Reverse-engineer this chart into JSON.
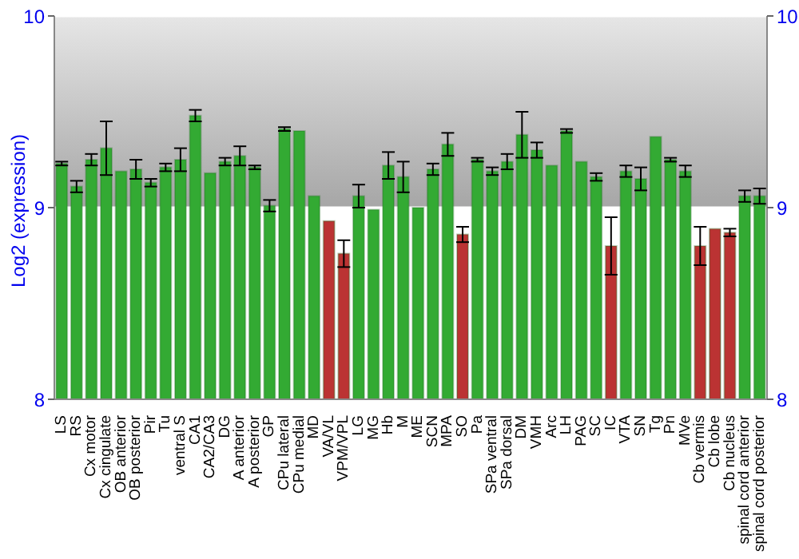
{
  "chart_data": {
    "type": "bar",
    "ylabel": "Log2 (expression)",
    "categories": [
      "LS",
      "RS",
      "Cx motor",
      "Cx cingulate",
      "OB anterior",
      "OB posterior",
      "Pir",
      "Tu",
      "ventral S",
      "CA1",
      "CA2/CA3",
      "DG",
      "A anterior",
      "A posterior",
      "GP",
      "CPu lateral",
      "CPu medial",
      "MD",
      "VA/VL",
      "VPM/VPL",
      "LG",
      "MG",
      "Hb",
      "M",
      "ME",
      "SCN",
      "MPA",
      "SO",
      "Pa",
      "SPa ventral",
      "SPa dorsal",
      "DM",
      "VMH",
      "Arc",
      "LH",
      "PAG",
      "SC",
      "IC",
      "VTA",
      "SN",
      "Tg",
      "Pn",
      "MVe",
      "Cb vermis",
      "Cb lobe",
      "Cb nucleus",
      "spinal cord anterior",
      "spinal cord posterior"
    ],
    "values": [
      9.23,
      9.11,
      9.25,
      9.31,
      9.19,
      9.2,
      9.13,
      9.21,
      9.25,
      9.48,
      9.18,
      9.24,
      9.27,
      9.21,
      9.01,
      9.41,
      9.4,
      9.06,
      8.93,
      8.76,
      9.06,
      8.99,
      9.22,
      9.16,
      9.0,
      9.2,
      9.33,
      8.86,
      9.25,
      9.19,
      9.24,
      9.38,
      9.3,
      9.22,
      9.4,
      9.24,
      9.16,
      8.8,
      9.19,
      9.15,
      9.37,
      9.25,
      9.19,
      8.8,
      8.89,
      8.87,
      9.06,
      9.06
    ],
    "errors": [
      0.01,
      0.03,
      0.03,
      0.14,
      null,
      0.05,
      0.02,
      0.02,
      0.06,
      0.03,
      null,
      0.02,
      0.05,
      0.01,
      0.03,
      0.01,
      null,
      null,
      null,
      0.07,
      0.06,
      null,
      0.07,
      0.08,
      null,
      0.03,
      0.06,
      0.04,
      0.01,
      0.02,
      0.04,
      0.12,
      0.04,
      null,
      0.01,
      null,
      0.02,
      0.15,
      0.03,
      0.06,
      null,
      0.01,
      0.03,
      0.1,
      null,
      0.02,
      0.03,
      0.04
    ],
    "colors": [
      "#33aa33",
      "#33aa33",
      "#33aa33",
      "#33aa33",
      "#33aa33",
      "#33aa33",
      "#33aa33",
      "#33aa33",
      "#33aa33",
      "#33aa33",
      "#33aa33",
      "#33aa33",
      "#33aa33",
      "#33aa33",
      "#33aa33",
      "#33aa33",
      "#33aa33",
      "#33aa33",
      "#bb3333",
      "#bb3333",
      "#33aa33",
      "#33aa33",
      "#33aa33",
      "#33aa33",
      "#33aa33",
      "#33aa33",
      "#33aa33",
      "#bb3333",
      "#33aa33",
      "#33aa33",
      "#33aa33",
      "#33aa33",
      "#33aa33",
      "#33aa33",
      "#33aa33",
      "#33aa33",
      "#33aa33",
      "#bb3333",
      "#33aa33",
      "#33aa33",
      "#33aa33",
      "#33aa33",
      "#33aa33",
      "#bb3333",
      "#bb3333",
      "#bb3333",
      "#33aa33",
      "#33aa33"
    ],
    "ylim": [
      8,
      10
    ],
    "yticks": [
      8,
      9,
      10
    ],
    "y2lim": [
      8,
      10
    ],
    "y2ticks": [
      8,
      9,
      10
    ],
    "grid": "y"
  }
}
